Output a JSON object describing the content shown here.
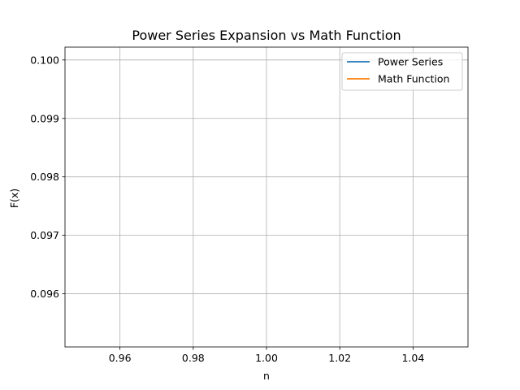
{
  "chart_data": {
    "type": "line",
    "title": "Power Series Expansion vs Math Function",
    "xlabel": "n",
    "ylabel": "F(x)",
    "xlim": [
      0.945,
      1.055
    ],
    "ylim": [
      0.09509,
      0.10022
    ],
    "x_ticks": [
      0.96,
      0.98,
      1.0,
      1.02,
      1.04
    ],
    "x_tick_labels": [
      "0.96",
      "0.98",
      "1.00",
      "1.02",
      "1.04"
    ],
    "y_ticks": [
      0.096,
      0.097,
      0.098,
      0.099,
      0.1
    ],
    "y_tick_labels": [
      "0.096",
      "0.097",
      "0.098",
      "0.099",
      "0.100"
    ],
    "grid": true,
    "legend_position": "top-right",
    "series": [
      {
        "name": "Power Series",
        "color": "#1f77b4",
        "x": [],
        "y": []
      },
      {
        "name": "Math Function",
        "color": "#ff7f0e",
        "x": [],
        "y": []
      }
    ]
  }
}
